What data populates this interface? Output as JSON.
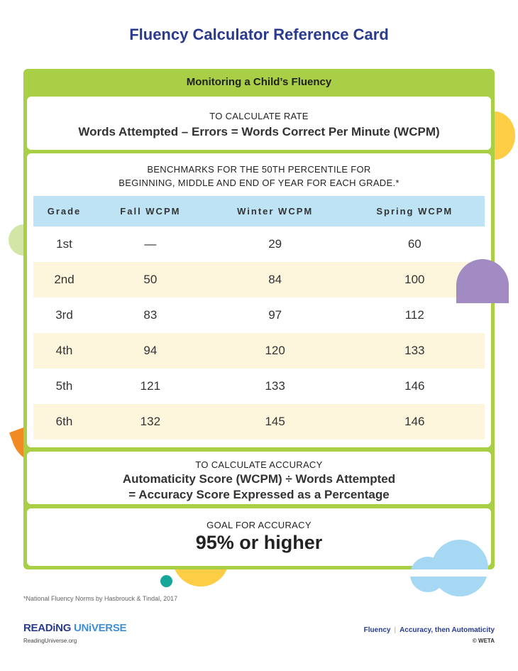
{
  "title": "Fluency Calculator Reference Card",
  "card_header": "Monitoring a Child’s Fluency",
  "rate": {
    "caption": "TO CALCULATE RATE",
    "formula": "Words Attempted – Errors = Words Correct Per Minute (WCPM)"
  },
  "benchmarks": {
    "caption_line1": "BENCHMARKS FOR THE 50TH PERCENTILE FOR",
    "caption_line2": "BEGINNING, MIDDLE AND END OF YEAR FOR EACH GRADE.*",
    "columns": [
      "Grade",
      "Fall WCPM",
      "Winter WCPM",
      "Spring WCPM"
    ],
    "rows": [
      [
        "1st",
        "—",
        "29",
        "60"
      ],
      [
        "2nd",
        "50",
        "84",
        "100"
      ],
      [
        "3rd",
        "83",
        "97",
        "112"
      ],
      [
        "4th",
        "94",
        "120",
        "133"
      ],
      [
        "5th",
        "121",
        "133",
        "146"
      ],
      [
        "6th",
        "132",
        "145",
        "146"
      ]
    ]
  },
  "accuracy": {
    "caption": "TO CALCULATE ACCURACY",
    "line1": "Automaticity Score (WCPM) ÷ Words Attempted",
    "line2": "= Accuracy Score Expressed as a Percentage"
  },
  "goal": {
    "caption": "GOAL FOR ACCURACY",
    "value": "95% or higher"
  },
  "footnote": "*National Fluency Norms by Hasbrouck & Tindal, 2017",
  "footer": {
    "logo_part1": "READiNG",
    "logo_part2": "UNiVERSE",
    "url": "ReadingUniverse.org",
    "series_1": "Fluency",
    "series_2": "Accuracy, then Automaticity",
    "copyright": "© WETA"
  },
  "colors": {
    "green": "#a8cf45",
    "navy": "#2a3b8f",
    "header_blue": "#bde3f5",
    "row_cream": "#fdf6dc"
  }
}
